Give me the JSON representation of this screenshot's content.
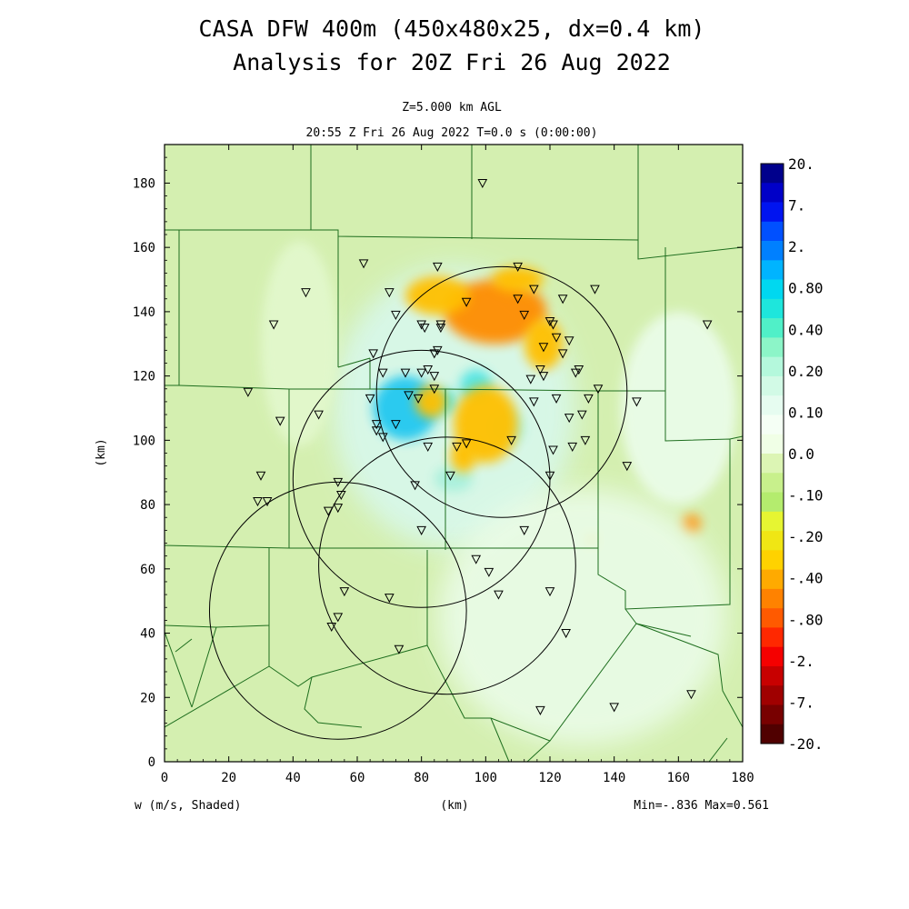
{
  "chart_data": {
    "type": "heatmap",
    "title": [
      "CASA DFW 400m (450x480x25, dx=0.4 km)",
      "Analysis for 20Z Fri 26 Aug 2022"
    ],
    "subtitle": [
      "Z=5.000 km AGL",
      "20:55 Z Fri 26 Aug 2022   T=0.0 s (0:00:00)"
    ],
    "xlabel": "(km)",
    "ylabel": "(km)",
    "variable_label": "w (m/s, Shaded)",
    "stats_label": "Min=-.836 Max=0.561",
    "xlim": [
      0,
      180
    ],
    "ylim": [
      0,
      192
    ],
    "x_ticks": [
      "0",
      "20",
      "40",
      "60",
      "80",
      "100",
      "120",
      "140",
      "160",
      "180"
    ],
    "y_ticks": [
      "0",
      "20",
      "40",
      "60",
      "80",
      "100",
      "120",
      "140",
      "160",
      "180"
    ],
    "colorbar": {
      "labels": [
        "20.",
        "7.",
        "2.",
        "0.80",
        "0.40",
        "0.20",
        "0.10",
        "0.0",
        "-.10",
        "-.20",
        "-.40",
        "-.80",
        "-2.",
        "-7.",
        "-20."
      ],
      "colors": [
        "#00008c",
        "#0000c8",
        "#0014f0",
        "#0050ff",
        "#0080ff",
        "#00b4ff",
        "#00d8f0",
        "#1ee6dc",
        "#50f0c8",
        "#8cf5c8",
        "#b4f8dc",
        "#d2fae6",
        "#e6fcf0",
        "#f5fff5",
        "#f0ffe6",
        "#dcf5b4",
        "#c8f08c",
        "#b4ec6e",
        "#e6f532",
        "#f0e614",
        "#ffd200",
        "#ffaa00",
        "#ff8200",
        "#ff5a00",
        "#ff2800",
        "#f50000",
        "#c80000",
        "#a00000",
        "#780000",
        "#500000"
      ]
    },
    "field_regions": [
      {
        "x": 90,
        "y": 110,
        "rx": 38,
        "ry": 44,
        "value": 0.06
      },
      {
        "x": 75,
        "y": 110,
        "rx": 10,
        "ry": 10,
        "value": 0.3
      },
      {
        "x": 87,
        "y": 112,
        "rx": 4,
        "ry": 4,
        "value": 0.25
      },
      {
        "x": 97,
        "y": 117,
        "rx": 5,
        "ry": 5,
        "value": 0.2
      },
      {
        "x": 90,
        "y": 88,
        "rx": 6,
        "ry": 4,
        "value": 0.15
      },
      {
        "x": 106,
        "y": 104,
        "rx": 6,
        "ry": 6,
        "value": 0.15
      },
      {
        "x": 103,
        "y": 140,
        "rx": 16,
        "ry": 10,
        "value": -0.4
      },
      {
        "x": 85,
        "y": 145,
        "rx": 10,
        "ry": 6,
        "value": -0.25
      },
      {
        "x": 110,
        "y": 150,
        "rx": 8,
        "ry": 4,
        "value": -0.25
      },
      {
        "x": 118,
        "y": 130,
        "rx": 6,
        "ry": 8,
        "value": -0.25
      },
      {
        "x": 100,
        "y": 105,
        "rx": 10,
        "ry": 12,
        "value": -0.3
      },
      {
        "x": 83,
        "y": 112,
        "rx": 5,
        "ry": 5,
        "value": -0.3
      },
      {
        "x": 93,
        "y": 95,
        "rx": 4,
        "ry": 5,
        "value": -0.3
      },
      {
        "x": 164,
        "y": 74,
        "rx": 3,
        "ry": 3,
        "value": -0.45
      },
      {
        "x": 133,
        "y": 69,
        "rx": 2,
        "ry": 2,
        "value": -0.3
      },
      {
        "x": 42,
        "y": 130,
        "rx": 12,
        "ry": 32,
        "value": 0.02
      },
      {
        "x": 130,
        "y": 45,
        "rx": 45,
        "ry": 40,
        "value": 0.04
      },
      {
        "x": 160,
        "y": 110,
        "rx": 18,
        "ry": 30,
        "value": 0.05
      }
    ],
    "radar_rings": [
      {
        "cx": 105,
        "cy": 115,
        "r": 39
      },
      {
        "cx": 80,
        "cy": 88,
        "r": 40
      },
      {
        "cx": 88,
        "cy": 61,
        "r": 40
      },
      {
        "cx": 54,
        "cy": 47,
        "r": 40
      }
    ],
    "stations": [
      [
        99,
        180
      ],
      [
        62,
        155
      ],
      [
        85,
        154
      ],
      [
        110,
        154
      ],
      [
        44,
        146
      ],
      [
        70,
        146
      ],
      [
        94,
        143
      ],
      [
        110,
        144
      ],
      [
        115,
        147
      ],
      [
        124,
        144
      ],
      [
        134,
        147
      ],
      [
        72,
        139
      ],
      [
        80,
        136
      ],
      [
        81,
        135
      ],
      [
        86,
        136
      ],
      [
        86,
        135
      ],
      [
        120,
        137
      ],
      [
        121,
        136
      ],
      [
        112,
        139
      ],
      [
        34,
        136
      ],
      [
        169,
        136
      ],
      [
        65,
        127
      ],
      [
        84,
        127
      ],
      [
        85,
        128
      ],
      [
        122,
        132
      ],
      [
        126,
        131
      ],
      [
        118,
        129
      ],
      [
        124,
        127
      ],
      [
        68,
        121
      ],
      [
        75,
        121
      ],
      [
        80,
        121
      ],
      [
        82,
        122
      ],
      [
        117,
        122
      ],
      [
        84,
        120
      ],
      [
        118,
        120
      ],
      [
        128,
        121
      ],
      [
        114,
        119
      ],
      [
        129,
        122
      ],
      [
        79,
        113
      ],
      [
        26,
        115
      ],
      [
        64,
        113
      ],
      [
        76,
        114
      ],
      [
        84,
        116
      ],
      [
        135,
        116
      ],
      [
        132,
        113
      ],
      [
        147,
        112
      ],
      [
        122,
        113
      ],
      [
        115,
        112
      ],
      [
        48,
        108
      ],
      [
        36,
        106
      ],
      [
        72,
        105
      ],
      [
        66,
        105
      ],
      [
        66,
        103
      ],
      [
        126,
        107
      ],
      [
        130,
        108
      ],
      [
        68,
        101
      ],
      [
        82,
        98
      ],
      [
        91,
        98
      ],
      [
        94,
        99
      ],
      [
        108,
        100
      ],
      [
        121,
        97
      ],
      [
        127,
        98
      ],
      [
        131,
        100
      ],
      [
        144,
        92
      ],
      [
        30,
        89
      ],
      [
        89,
        89
      ],
      [
        120,
        89
      ],
      [
        54,
        87
      ],
      [
        78,
        86
      ],
      [
        55,
        83
      ],
      [
        29,
        81
      ],
      [
        32,
        81
      ],
      [
        54,
        79
      ],
      [
        51,
        78
      ],
      [
        80,
        72
      ],
      [
        112,
        72
      ],
      [
        97,
        63
      ],
      [
        101,
        59
      ],
      [
        56,
        53
      ],
      [
        70,
        51
      ],
      [
        104,
        52
      ],
      [
        120,
        53
      ],
      [
        54,
        45
      ],
      [
        52,
        42
      ],
      [
        125,
        40
      ],
      [
        73,
        35
      ],
      [
        164,
        21
      ],
      [
        140,
        17
      ],
      [
        117,
        16
      ]
    ]
  }
}
